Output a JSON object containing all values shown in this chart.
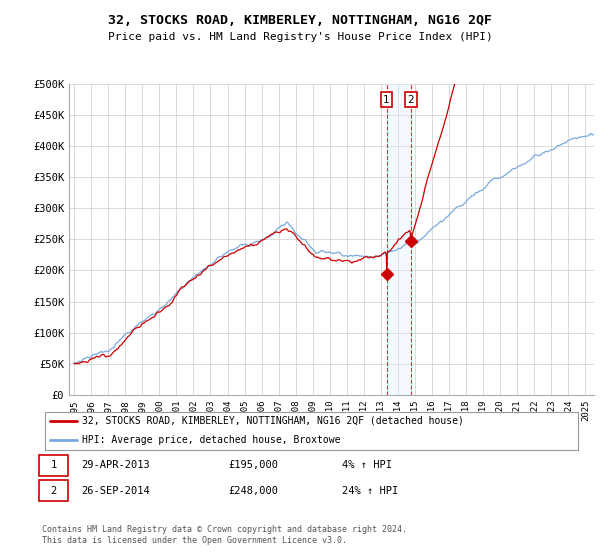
{
  "title": "32, STOCKS ROAD, KIMBERLEY, NOTTINGHAM, NG16 2QF",
  "subtitle": "Price paid vs. HM Land Registry's House Price Index (HPI)",
  "legend_line1": "32, STOCKS ROAD, KIMBERLEY, NOTTINGHAM, NG16 2QF (detached house)",
  "legend_line2": "HPI: Average price, detached house, Broxtowe",
  "transaction1_date": "29-APR-2013",
  "transaction1_price": 195000,
  "transaction1_pct": "4%",
  "transaction2_date": "26-SEP-2014",
  "transaction2_price": 248000,
  "transaction2_pct": "24%",
  "footer": "Contains HM Land Registry data © Crown copyright and database right 2024.\nThis data is licensed under the Open Government Licence v3.0.",
  "red_color": "#cc0000",
  "blue_color": "#7aaadd",
  "shade_color": "#ddeeff",
  "ylim": [
    0,
    500000
  ],
  "yticks": [
    0,
    50000,
    100000,
    150000,
    200000,
    250000,
    300000,
    350000,
    400000,
    450000,
    500000
  ],
  "ytick_labels": [
    "£0",
    "£50K",
    "£100K",
    "£150K",
    "£200K",
    "£250K",
    "£300K",
    "£350K",
    "£400K",
    "£450K",
    "£500K"
  ],
  "start_year": 1995.0,
  "end_year": 2025.5,
  "t1": 2013.33,
  "t2": 2014.75
}
